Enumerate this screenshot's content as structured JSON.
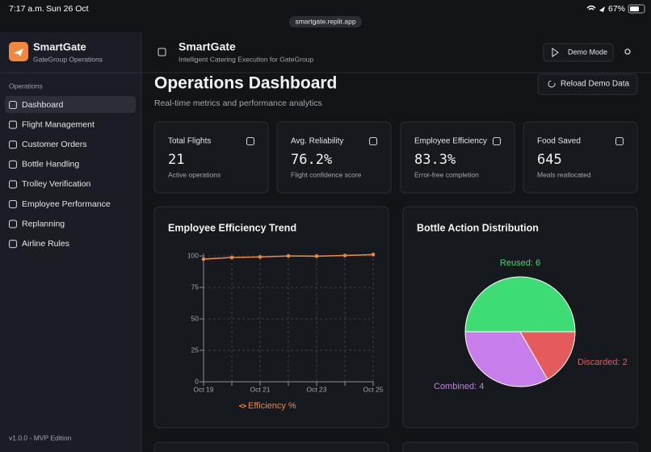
{
  "status_bar": {
    "time": "7:17 a.m.",
    "date": "Sun 26 Oct",
    "url": "smartgate.replit.app",
    "battery": "67%"
  },
  "sidebar": {
    "brand": {
      "title": "SmartGate",
      "subtitle": "GateGroup Operations"
    },
    "section": "Operations",
    "nav": [
      "Dashboard",
      "Flight Management",
      "Customer Orders",
      "Bottle Handling",
      "Trolley Verification",
      "Employee Performance",
      "Replanning",
      "Airline Rules"
    ],
    "active": 0,
    "version": "v1.0.0 - MVP Edition"
  },
  "header": {
    "title": "SmartGate",
    "subtitle": "Intelligent Catering Execution for GateGroup",
    "button": "Demo Mode"
  },
  "page": {
    "title": "Operations Dashboard",
    "subtitle": "Real-time metrics and performance analytics",
    "button": "Reload Demo Data"
  },
  "stats": [
    {
      "label": "Total Flights",
      "value": "21",
      "note": "Active operations"
    },
    {
      "label": "Avg. Reliability",
      "value": "76.2%",
      "note": "Flight confidence score"
    },
    {
      "label": "Employee Efficiency",
      "value": "83.3%",
      "note": "Error-free completion"
    },
    {
      "label": "Food Saved",
      "value": "645",
      "note": "Meals reallocated"
    }
  ],
  "chart_data": [
    {
      "type": "line",
      "title": "Employee Efficiency Trend",
      "categories": [
        "Oct 19",
        null,
        "Oct 21",
        null,
        "Oct 23",
        null,
        "Oct 25"
      ],
      "series": [
        {
          "name": "Efficiency %",
          "color": "#f0883e",
          "values": [
            97.5,
            98.8,
            99.2,
            100,
            99.8,
            100.4,
            101.1
          ]
        }
      ],
      "ylim": [
        0,
        102
      ],
      "yticks": [
        0,
        25,
        50,
        75,
        100
      ],
      "grid": true
    },
    {
      "type": "pie",
      "title": "Bottle Action Distribution",
      "categories": [
        "Reused",
        "Combined",
        "Discarded"
      ],
      "values": [
        6,
        4,
        2
      ],
      "value_labels": [
        "Reused: 6",
        "Combined: 4",
        "Discarded: 2"
      ],
      "colors": [
        "#3ddc74",
        "#c77dea",
        "#e55b5b"
      ]
    }
  ]
}
